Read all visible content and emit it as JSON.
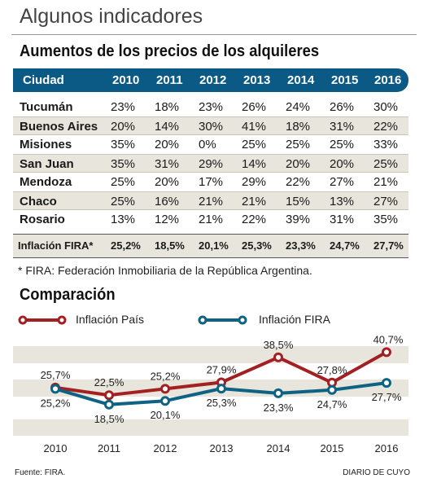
{
  "page_title": "Algunos indicadores",
  "section_title": "Aumentos de los precios de los alquileres",
  "table": {
    "header_city": "Ciudad",
    "years": [
      "2010",
      "2011",
      "2012",
      "2013",
      "2014",
      "2015",
      "2016"
    ],
    "rows": [
      {
        "city": "Tucumán",
        "values": [
          "23%",
          "18%",
          "23%",
          "26%",
          "24%",
          "26%",
          "30%"
        ]
      },
      {
        "city": "Buenos Aires",
        "values": [
          "20%",
          "14%",
          "30%",
          "41%",
          "18%",
          "31%",
          "22%"
        ]
      },
      {
        "city": "Misiones",
        "values": [
          "35%",
          "20%",
          "0%",
          "25%",
          "25%",
          "25%",
          "33%"
        ]
      },
      {
        "city": "San Juan",
        "values": [
          "35%",
          "31%",
          "29%",
          "14%",
          "20%",
          "20%",
          "25%"
        ]
      },
      {
        "city": "Mendoza",
        "values": [
          "25%",
          "20%",
          "17%",
          "29%",
          "22%",
          "27%",
          "21%"
        ]
      },
      {
        "city": "Chaco",
        "values": [
          "25%",
          "16%",
          "21%",
          "21%",
          "15%",
          "13%",
          "27%"
        ]
      },
      {
        "city": "Rosario",
        "values": [
          "13%",
          "12%",
          "21%",
          "22%",
          "39%",
          "31%",
          "35%"
        ]
      }
    ],
    "inflation_label": "Inflación FIRA*",
    "inflation_values": [
      "25,2%",
      "18,5%",
      "20,1%",
      "25,3%",
      "23,3%",
      "24,7%",
      "27,7%"
    ]
  },
  "footnote": "* FIRA: Federación Inmobiliaria de la República Argentina.",
  "comparison_title": "Comparación",
  "legend": {
    "pais": "Inflación País",
    "fira": "Inflación FIRA"
  },
  "colors": {
    "pais": "#a32022",
    "fira": "#0e6283",
    "header": "#0b5a86",
    "band": "#e8e6dc"
  },
  "chart_data": {
    "type": "line",
    "x": [
      "2010",
      "2011",
      "2012",
      "2013",
      "2014",
      "2015",
      "2016"
    ],
    "series": [
      {
        "name": "Inflación País",
        "values": [
          25.7,
          22.5,
          25.2,
          27.9,
          38.5,
          27.8,
          40.7
        ],
        "labels": [
          "25,7%",
          "22,5%",
          "25,2%",
          "27,9%",
          "38,5%",
          "27,8%",
          "40,7%"
        ]
      },
      {
        "name": "Inflación FIRA",
        "values": [
          25.2,
          18.5,
          20.1,
          25.3,
          23.3,
          24.7,
          27.7
        ],
        "labels": [
          "25,2%",
          "18,5%",
          "20,1%",
          "25,3%",
          "23,3%",
          "24,7%",
          "27,7%"
        ]
      }
    ]
  },
  "source": "Fuente: FIRA.",
  "brand": "DIARIO DE CUYO"
}
